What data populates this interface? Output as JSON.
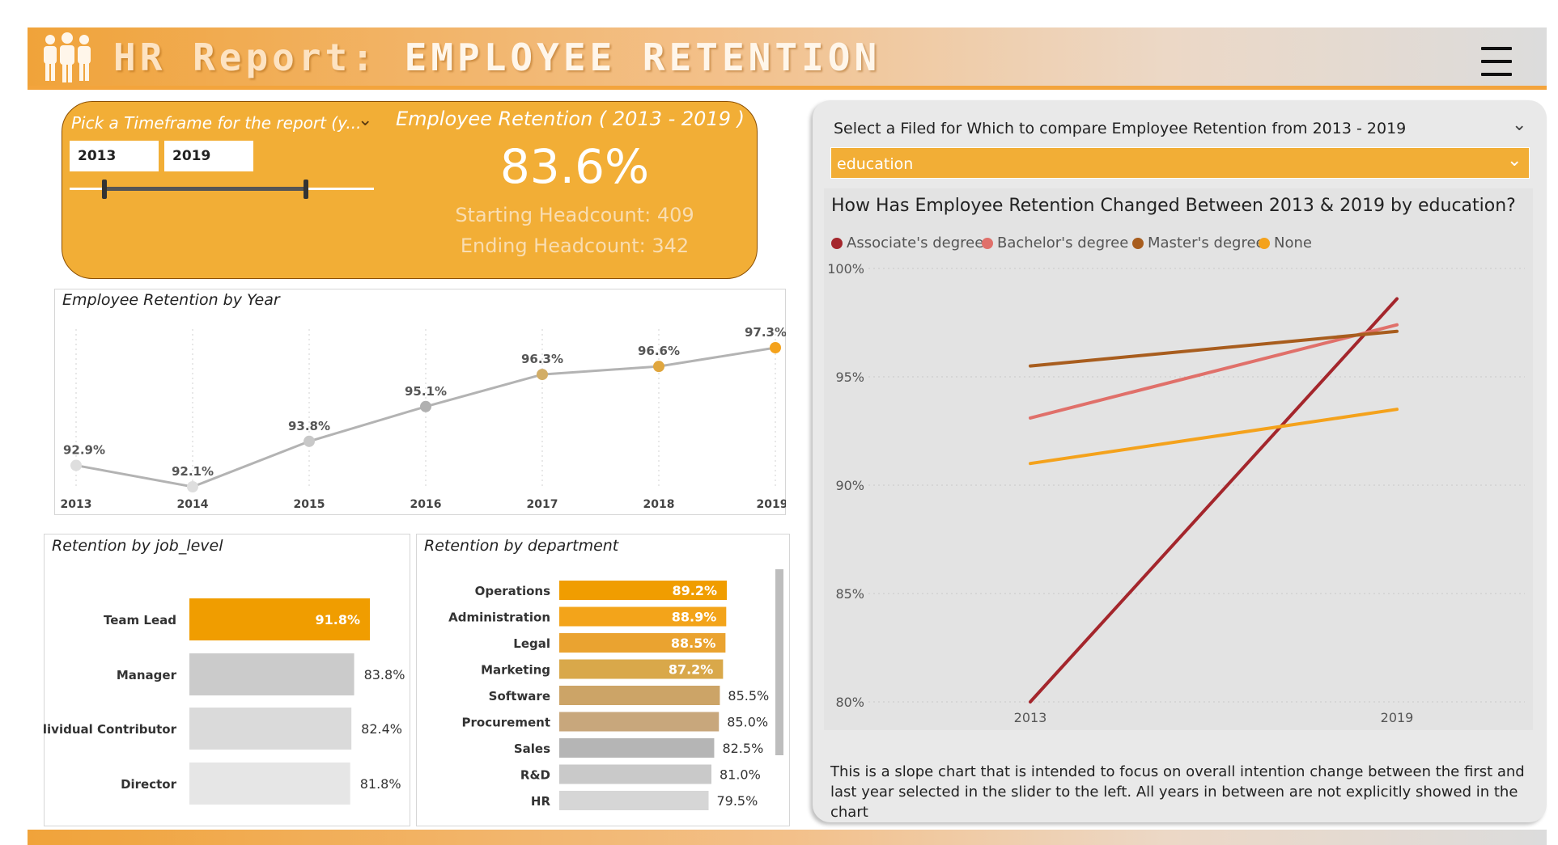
{
  "header": {
    "title_prefix": "HR Report:",
    "title_main": "EMPLOYEE RETENTION",
    "logo_icon": "people-icon",
    "menu_icon": "hamburger-icon"
  },
  "kpi": {
    "slicer_title": "Pick a Timeframe for the report (y...",
    "start_year": "2013",
    "end_year": "2019",
    "slider_range": [
      2013,
      2019
    ],
    "title": "Employee Retention ( 2013 - 2019 )",
    "value": "83.6%",
    "starting_headcount": "Starting Headcount: 409",
    "ending_headcount": "Ending Headcount: 342"
  },
  "compare": {
    "title": "Select a Filed for Which to compare Employee Retention from 2013 - 2019",
    "selected": "education",
    "description": "This is a slope chart that is intended to focus on overall intention change between the first and last year selected in the slider to the left. All years in between are not explicitly showed in the chart"
  },
  "colors": {
    "accent": "#f2ae36",
    "associate": "#a4262c",
    "bachelor": "#e0706a",
    "master": "#a85d1e",
    "none": "#f4a21c"
  },
  "chart_data": [
    {
      "type": "line",
      "title": "Employee Retention by Year",
      "categories": [
        "2013",
        "2014",
        "2015",
        "2016",
        "2017",
        "2018",
        "2019"
      ],
      "values": [
        92.9,
        92.1,
        93.8,
        95.1,
        96.3,
        96.6,
        97.3
      ],
      "labels": [
        "92.9%",
        "92.1%",
        "93.8%",
        "95.1%",
        "96.3%",
        "96.6%",
        "97.3%"
      ],
      "ylim": [
        92.1,
        97.3
      ],
      "grid": "vertical dotted"
    },
    {
      "type": "bar",
      "orientation": "horizontal",
      "title": "Retention by job_level",
      "categories": [
        "Team Lead",
        "Manager",
        "Individual Contributor",
        "Director"
      ],
      "values": [
        91.8,
        83.8,
        82.4,
        81.8
      ],
      "labels": [
        "91.8%",
        "83.8%",
        "82.4%",
        "81.8%"
      ]
    },
    {
      "type": "bar",
      "orientation": "horizontal",
      "title": "Retention by department",
      "categories": [
        "Operations",
        "Administration",
        "Legal",
        "Marketing",
        "Software",
        "Procurement",
        "Sales",
        "R&D",
        "HR"
      ],
      "values": [
        89.2,
        88.9,
        88.5,
        87.2,
        85.5,
        85.0,
        82.5,
        81.0,
        79.5
      ],
      "labels": [
        "89.2%",
        "88.9%",
        "88.5%",
        "87.2%",
        "85.5%",
        "85.0%",
        "82.5%",
        "81.0%",
        "79.5%"
      ]
    },
    {
      "type": "line",
      "subtype": "slope",
      "title": "How Has Employee Retention Changed Between 2013 & 2019 by education?",
      "x": [
        "2013",
        "2019"
      ],
      "yticks": [
        "100%",
        "95%",
        "90%",
        "85%",
        "80%"
      ],
      "ylim": [
        80,
        100
      ],
      "legend_position": "top-left",
      "series": [
        {
          "name": "Associate's degree",
          "values": [
            80.0,
            98.6
          ],
          "color": "#a4262c"
        },
        {
          "name": "Bachelor's degree",
          "values": [
            93.1,
            97.4
          ],
          "color": "#e0706a"
        },
        {
          "name": "Master's degree",
          "values": [
            95.5,
            97.1
          ],
          "color": "#a85d1e"
        },
        {
          "name": "None",
          "values": [
            91.0,
            93.5
          ],
          "color": "#f4a21c"
        }
      ]
    }
  ]
}
